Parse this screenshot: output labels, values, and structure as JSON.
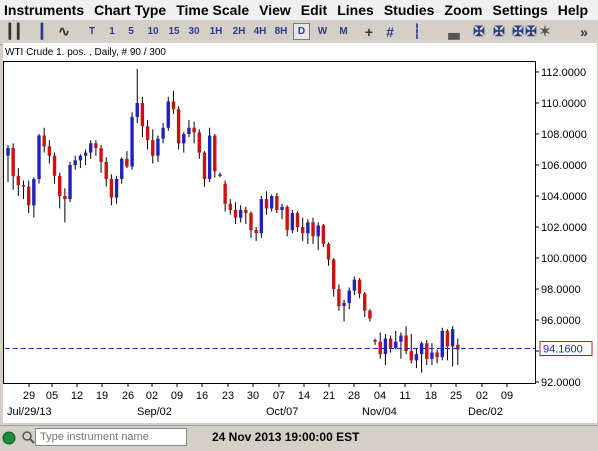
{
  "menu": [
    "Instruments",
    "Chart Type",
    "Time Scale",
    "View",
    "Edit",
    "Lines",
    "Studies",
    "Zoom",
    "Settings",
    "Help"
  ],
  "toolbar": {
    "timeframes": [
      "T",
      "1",
      "5",
      "10",
      "15",
      "30",
      "1H",
      "2H",
      "4H",
      "8H",
      "D",
      "W",
      "M"
    ],
    "selected_timeframe": "D",
    "icons": [
      "bar-chart-icon",
      "candlestick-icon",
      "line-chart-icon",
      "crosshair-icon",
      "grid-icon",
      "studies-icon",
      "volume-icon",
      "scroll-left-icon",
      "scroll-right-icon",
      "zoom-in-icon",
      "zoom-out-icon",
      "pin-icon",
      "more-icon"
    ]
  },
  "chart": {
    "header": "WTI Crude 1. pos. , Daily, # 90 / 300",
    "price_label": "94.1600",
    "y_ticks": [
      "112.0000",
      "110.0000",
      "108.0000",
      "106.0000",
      "104.0000",
      "102.0000",
      "100.0000",
      "98.0000",
      "96.0000",
      "94.0000",
      "92.0000"
    ],
    "x_ticks": [
      "29",
      "05",
      "12",
      "19",
      "26",
      "02",
      "09",
      "16",
      "23",
      "30",
      "07",
      "14",
      "21",
      "28",
      "04",
      "11",
      "18",
      "25",
      "02",
      "09"
    ],
    "month_labels": [
      "Jul/29/13",
      "Sep/02",
      "Oct/07",
      "Nov/04",
      "Dec/02"
    ]
  },
  "chart_data": {
    "type": "candlestick",
    "title": "WTI Crude 1. pos. , Daily, # 90 / 300",
    "ylim": [
      91.8,
      113.0
    ],
    "current_price": 94.16,
    "colors": {
      "up": "#2222bb",
      "down": "#cc1111",
      "current_line": "#2222bb",
      "price_box": "#cc1111"
    },
    "candles": [
      {
        "d": "Jul-24",
        "o": 106.6,
        "h": 107.3,
        "l": 104.9,
        "c": 107.1
      },
      {
        "d": "Jul-25",
        "o": 107.1,
        "h": 107.4,
        "l": 104.4,
        "c": 105.3
      },
      {
        "d": "Jul-26",
        "o": 105.3,
        "h": 105.8,
        "l": 104.0,
        "c": 104.7
      },
      {
        "d": "Jul-29",
        "o": 104.7,
        "h": 105.0,
        "l": 103.8,
        "c": 104.6
      },
      {
        "d": "Jul-30",
        "o": 104.6,
        "h": 105.0,
        "l": 102.9,
        "c": 103.4
      },
      {
        "d": "Jul-31",
        "o": 103.4,
        "h": 105.2,
        "l": 102.6,
        "c": 105.1
      },
      {
        "d": "Aug-01",
        "o": 105.1,
        "h": 108.0,
        "l": 104.8,
        "c": 107.9
      },
      {
        "d": "Aug-02",
        "o": 107.9,
        "h": 108.4,
        "l": 106.8,
        "c": 107.2
      },
      {
        "d": "Aug-05",
        "o": 107.2,
        "h": 107.6,
        "l": 106.1,
        "c": 106.6
      },
      {
        "d": "Aug-06",
        "o": 106.6,
        "h": 106.8,
        "l": 104.8,
        "c": 105.3
      },
      {
        "d": "Aug-07",
        "o": 105.3,
        "h": 105.5,
        "l": 103.2,
        "c": 104.0
      },
      {
        "d": "Aug-08",
        "o": 104.0,
        "h": 104.5,
        "l": 102.3,
        "c": 103.8
      },
      {
        "d": "Aug-09",
        "o": 103.8,
        "h": 106.2,
        "l": 103.6,
        "c": 106.0
      },
      {
        "d": "Aug-12",
        "o": 106.0,
        "h": 106.6,
        "l": 105.7,
        "c": 106.3
      },
      {
        "d": "Aug-13",
        "o": 106.3,
        "h": 106.7,
        "l": 105.8,
        "c": 106.6
      },
      {
        "d": "Aug-14",
        "o": 106.6,
        "h": 107.0,
        "l": 106.0,
        "c": 106.8
      },
      {
        "d": "Aug-15",
        "o": 106.8,
        "h": 107.6,
        "l": 106.4,
        "c": 107.4
      },
      {
        "d": "Aug-16",
        "o": 107.4,
        "h": 107.6,
        "l": 106.6,
        "c": 107.1
      },
      {
        "d": "Aug-19",
        "o": 107.1,
        "h": 107.3,
        "l": 105.5,
        "c": 106.2
      },
      {
        "d": "Aug-20",
        "o": 106.2,
        "h": 106.5,
        "l": 104.6,
        "c": 105.1
      },
      {
        "d": "Aug-21",
        "o": 105.1,
        "h": 105.4,
        "l": 103.4,
        "c": 103.9
      },
      {
        "d": "Aug-22",
        "o": 103.9,
        "h": 105.3,
        "l": 103.5,
        "c": 105.1
      },
      {
        "d": "Aug-23",
        "o": 105.1,
        "h": 106.5,
        "l": 104.8,
        "c": 106.4
      },
      {
        "d": "Aug-26",
        "o": 106.4,
        "h": 106.9,
        "l": 105.8,
        "c": 105.9
      },
      {
        "d": "Aug-27",
        "o": 105.9,
        "h": 109.4,
        "l": 105.7,
        "c": 109.1
      },
      {
        "d": "Aug-28",
        "o": 109.1,
        "h": 112.2,
        "l": 108.7,
        "c": 110.0
      },
      {
        "d": "Aug-29",
        "o": 110.0,
        "h": 110.4,
        "l": 107.8,
        "c": 108.5
      },
      {
        "d": "Aug-30",
        "o": 108.5,
        "h": 108.9,
        "l": 107.0,
        "c": 107.6
      },
      {
        "d": "Sep-03",
        "o": 107.6,
        "h": 108.3,
        "l": 106.1,
        "c": 106.6
      },
      {
        "d": "Sep-04",
        "o": 106.6,
        "h": 107.9,
        "l": 106.2,
        "c": 107.7
      },
      {
        "d": "Sep-05",
        "o": 107.7,
        "h": 108.7,
        "l": 107.4,
        "c": 108.4
      },
      {
        "d": "Sep-06",
        "o": 108.4,
        "h": 110.4,
        "l": 108.2,
        "c": 110.1
      },
      {
        "d": "Sep-09",
        "o": 110.1,
        "h": 110.8,
        "l": 109.3,
        "c": 109.6
      },
      {
        "d": "Sep-10",
        "o": 109.6,
        "h": 109.8,
        "l": 107.0,
        "c": 107.4
      },
      {
        "d": "Sep-11",
        "o": 107.4,
        "h": 108.1,
        "l": 106.8,
        "c": 108.0
      },
      {
        "d": "Sep-12",
        "o": 108.0,
        "h": 108.9,
        "l": 107.8,
        "c": 108.4
      },
      {
        "d": "Sep-13",
        "o": 108.4,
        "h": 108.8,
        "l": 107.4,
        "c": 108.1
      },
      {
        "d": "Sep-16",
        "o": 108.1,
        "h": 108.3,
        "l": 106.4,
        "c": 106.8
      },
      {
        "d": "Sep-17",
        "o": 106.8,
        "h": 106.9,
        "l": 104.6,
        "c": 105.1
      },
      {
        "d": "Sep-18",
        "o": 105.1,
        "h": 108.4,
        "l": 104.9,
        "c": 107.9
      },
      {
        "d": "Sep-19",
        "o": 107.9,
        "h": 108.0,
        "l": 105.2,
        "c": 105.6
      },
      {
        "d": "Sep-20",
        "o": 105.4,
        "h": 105.5,
        "l": 105.2,
        "c": 105.4
      },
      {
        "d": "Sep-23",
        "o": 104.8,
        "h": 105.0,
        "l": 103.0,
        "c": 103.5
      },
      {
        "d": "Sep-24",
        "o": 103.5,
        "h": 103.8,
        "l": 102.8,
        "c": 103.1
      },
      {
        "d": "Sep-25",
        "o": 103.1,
        "h": 103.6,
        "l": 102.2,
        "c": 102.6
      },
      {
        "d": "Sep-26",
        "o": 102.6,
        "h": 103.4,
        "l": 102.3,
        "c": 103.1
      },
      {
        "d": "Sep-27",
        "o": 103.1,
        "h": 103.3,
        "l": 102.2,
        "c": 102.9
      },
      {
        "d": "Sep-30",
        "o": 102.9,
        "h": 103.0,
        "l": 101.3,
        "c": 101.8
      },
      {
        "d": "Oct-01",
        "o": 101.8,
        "h": 102.0,
        "l": 101.1,
        "c": 101.6
      },
      {
        "d": "Oct-02",
        "o": 101.6,
        "h": 104.0,
        "l": 101.3,
        "c": 103.8
      },
      {
        "d": "Oct-03",
        "o": 103.8,
        "h": 104.3,
        "l": 102.8,
        "c": 103.2
      },
      {
        "d": "Oct-04",
        "o": 103.2,
        "h": 104.1,
        "l": 103.0,
        "c": 104.0
      },
      {
        "d": "Oct-07",
        "o": 104.0,
        "h": 104.2,
        "l": 102.9,
        "c": 103.1
      },
      {
        "d": "Oct-08",
        "o": 103.1,
        "h": 103.5,
        "l": 102.5,
        "c": 103.3
      },
      {
        "d": "Oct-09",
        "o": 103.3,
        "h": 103.4,
        "l": 101.4,
        "c": 101.8
      },
      {
        "d": "Oct-10",
        "o": 101.8,
        "h": 103.1,
        "l": 101.6,
        "c": 102.9
      },
      {
        "d": "Oct-11",
        "o": 102.9,
        "h": 103.0,
        "l": 101.7,
        "c": 102.0
      },
      {
        "d": "Oct-14",
        "o": 102.0,
        "h": 102.6,
        "l": 101.1,
        "c": 101.6
      },
      {
        "d": "Oct-15",
        "o": 101.6,
        "h": 102.5,
        "l": 100.9,
        "c": 102.3
      },
      {
        "d": "Oct-16",
        "o": 102.3,
        "h": 102.6,
        "l": 100.9,
        "c": 101.4
      },
      {
        "d": "Oct-17",
        "o": 101.4,
        "h": 102.3,
        "l": 100.5,
        "c": 102.1
      },
      {
        "d": "Oct-18",
        "o": 102.1,
        "h": 102.2,
        "l": 100.7,
        "c": 100.9
      },
      {
        "d": "Oct-21",
        "o": 100.9,
        "h": 101.0,
        "l": 99.5,
        "c": 99.9
      },
      {
        "d": "Oct-22",
        "o": 99.9,
        "h": 100.0,
        "l": 97.5,
        "c": 98.0
      },
      {
        "d": "Oct-23",
        "o": 98.0,
        "h": 98.3,
        "l": 96.6,
        "c": 96.9
      },
      {
        "d": "Oct-24",
        "o": 96.9,
        "h": 97.3,
        "l": 95.9,
        "c": 97.1
      },
      {
        "d": "Oct-25",
        "o": 97.1,
        "h": 98.1,
        "l": 96.7,
        "c": 97.9
      },
      {
        "d": "Oct-28",
        "o": 97.9,
        "h": 98.8,
        "l": 97.6,
        "c": 98.6
      },
      {
        "d": "Oct-29",
        "o": 98.6,
        "h": 98.7,
        "l": 97.4,
        "c": 97.7
      },
      {
        "d": "Oct-30",
        "o": 97.7,
        "h": 97.8,
        "l": 96.2,
        "c": 96.6
      },
      {
        "d": "Oct-31",
        "o": 96.6,
        "h": 96.7,
        "l": 95.9,
        "c": 96.1
      },
      {
        "d": "Nov-04",
        "o": 94.7,
        "h": 94.8,
        "l": 94.4,
        "c": 94.6
      },
      {
        "d": "Nov-05",
        "o": 94.6,
        "h": 95.2,
        "l": 93.5,
        "c": 93.8
      },
      {
        "d": "Nov-06",
        "o": 93.8,
        "h": 95.1,
        "l": 93.1,
        "c": 94.8
      },
      {
        "d": "Nov-07",
        "o": 94.8,
        "h": 95.0,
        "l": 93.9,
        "c": 94.2
      },
      {
        "d": "Nov-08",
        "o": 94.2,
        "h": 95.3,
        "l": 94.1,
        "c": 94.6
      },
      {
        "d": "Nov-11",
        "o": 94.6,
        "h": 95.2,
        "l": 93.5,
        "c": 95.0
      },
      {
        "d": "Nov-12",
        "o": 95.0,
        "h": 95.6,
        "l": 93.8,
        "c": 94.0
      },
      {
        "d": "Nov-13",
        "o": 94.0,
        "h": 95.1,
        "l": 93.2,
        "c": 93.4
      },
      {
        "d": "Nov-14",
        "o": 93.4,
        "h": 94.2,
        "l": 92.9,
        "c": 93.8
      },
      {
        "d": "Nov-15",
        "o": 93.8,
        "h": 94.6,
        "l": 92.6,
        "c": 94.5
      },
      {
        "d": "Nov-18",
        "o": 94.5,
        "h": 94.7,
        "l": 93.1,
        "c": 93.5
      },
      {
        "d": "Nov-19",
        "o": 93.5,
        "h": 94.5,
        "l": 93.1,
        "c": 93.9
      },
      {
        "d": "Nov-20",
        "o": 93.9,
        "h": 94.1,
        "l": 93.2,
        "c": 93.6
      },
      {
        "d": "Nov-21",
        "o": 93.6,
        "h": 95.5,
        "l": 93.4,
        "c": 95.3
      },
      {
        "d": "Nov-22",
        "o": 95.3,
        "h": 95.4,
        "l": 93.4,
        "c": 94.3
      },
      {
        "d": "Nov-25",
        "o": 94.3,
        "h": 95.6,
        "l": 93.0,
        "c": 95.4
      },
      {
        "d": "Nov-26",
        "o": 94.4,
        "h": 94.8,
        "l": 93.1,
        "c": 94.1
      }
    ]
  },
  "footer": {
    "search_placeholder": "Type instrument name",
    "datetime": "24 Nov 2013 19:00:00 EST"
  }
}
